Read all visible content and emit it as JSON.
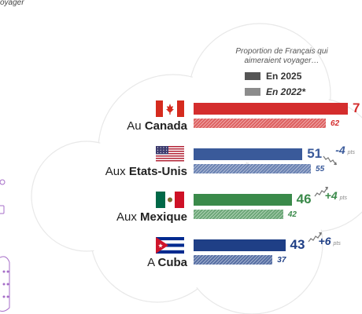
{
  "corner_text": "oyager",
  "legend": {
    "heading_line1": "Proportion de Français qui",
    "heading_line2": "aimeraient voyager…",
    "series1_label": "En 2025",
    "series2_label": "En 2022*"
  },
  "colors": {
    "series1_swatch": "#555555",
    "series2_swatch": "#8c8c8c",
    "canada": "#d42d2d",
    "usa": "#3a5a9a",
    "mexique": "#3a8a4a",
    "cuba": "#1f3f86"
  },
  "chart_data": {
    "type": "bar",
    "orientation": "horizontal",
    "categories": [
      {
        "prefix": "Au",
        "name": "Canada",
        "flag": "canada-flag-icon",
        "color": "#d42d2d",
        "value_2025": 7,
        "value_2025_label": "7",
        "value_2022": 62,
        "value_2022_label": "62",
        "delta": null,
        "delta_label": "",
        "trend": null
      },
      {
        "prefix": "Aux",
        "name": "Etats-Unis",
        "flag": "usa-flag-icon",
        "color": "#3a5a9a",
        "value_2025": 51,
        "value_2025_label": "51",
        "value_2022": 55,
        "value_2022_label": "55",
        "delta": -4,
        "delta_label": "-4",
        "trend": "down"
      },
      {
        "prefix": "Aux",
        "name": "Mexique",
        "flag": "mexico-flag-icon",
        "color": "#3a8a4a",
        "value_2025": 46,
        "value_2025_label": "46",
        "value_2022": 42,
        "value_2022_label": "42",
        "delta": 4,
        "delta_label": "+4",
        "trend": "up"
      },
      {
        "prefix": "A",
        "name": "Cuba",
        "flag": "cuba-flag-icon",
        "color": "#1f3f86",
        "value_2025": 43,
        "value_2025_label": "43",
        "value_2022": 37,
        "value_2022_label": "37",
        "delta": 6,
        "delta_label": "+6",
        "trend": "up"
      }
    ],
    "delta_unit": "pts",
    "series": [
      {
        "name": "En 2025",
        "style": "solid"
      },
      {
        "name": "En 2022*",
        "style": "hatched"
      }
    ],
    "legend_position": "top-right"
  }
}
